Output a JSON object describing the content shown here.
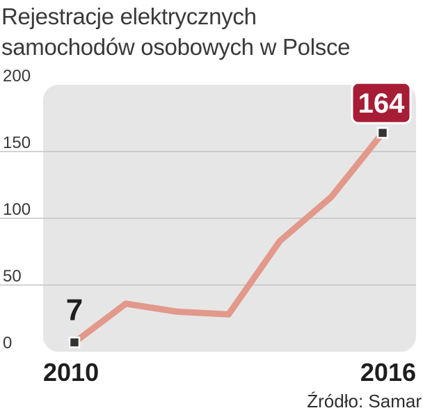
{
  "title_lines": [
    "Rejestracje elektrycznych",
    "samochodów osobowych w Polsce"
  ],
  "source": "Źródło: Samar",
  "colors": {
    "plot_bg": "#e6e6e6",
    "grid": "#c4c4c4",
    "line": "#e2988a",
    "marker": "#333333",
    "badge_bg": "#a61d35",
    "badge_text": "#ffffff",
    "tick_text": "#3a3a3a",
    "xlabel_text": "#1e1e1e"
  },
  "chart_data": {
    "type": "line",
    "title": "Rejestracje elektrycznych samochodów osobowych w Polsce",
    "x": [
      2010,
      2011,
      2012,
      2013,
      2014,
      2015,
      2016
    ],
    "x_tick_labels": [
      "2010",
      "2016"
    ],
    "series": [
      {
        "values": [
          7,
          36,
          30,
          28,
          83,
          116,
          164
        ]
      }
    ],
    "ylim": [
      0,
      200
    ],
    "y_ticks": [
      0,
      50,
      100,
      150,
      200
    ],
    "annotations": [
      {
        "x": 2010,
        "y": 7,
        "text": "7",
        "style": "plain"
      },
      {
        "x": 2016,
        "y": 164,
        "text": "164",
        "style": "badge"
      }
    ],
    "grid": true,
    "legend": "none"
  }
}
